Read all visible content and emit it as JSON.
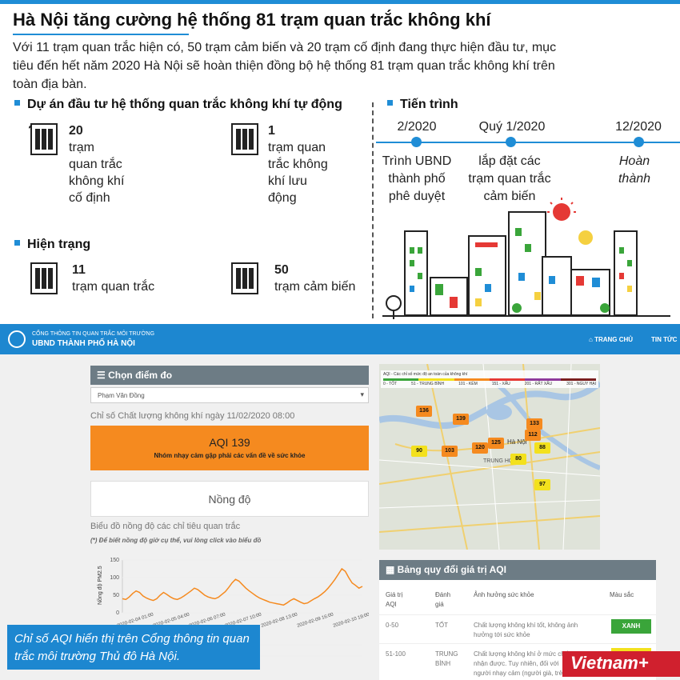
{
  "header": {
    "title": "Hà Nội tăng cường hệ thống 81 trạm quan trắc không khí",
    "intro": "Với 11 trạm quan trắc hiện có, 50 trạm cảm biến và 20 trạm cố định đang thực hiện đầu tư, mục tiêu đến hết năm 2020 Hà Nội sẽ hoàn thiện đồng bộ hệ thống 81 trạm quan trắc không khí trên toàn địa bàn."
  },
  "project": {
    "heading": "Dự án đầu tư hệ thống quan trắc không khí tự động",
    "items": [
      {
        "number": "20",
        "l1": "trạm",
        "l2": "quan trắc",
        "l3": "không khí",
        "l4": "cố định"
      },
      {
        "number": "1",
        "l1": "trạm quan",
        "l2": "trắc không",
        "l3": "khí lưu",
        "l4": "động"
      }
    ]
  },
  "current": {
    "heading": "Hiện trạng",
    "items": [
      {
        "number": "11",
        "label": "trạm quan trắc"
      },
      {
        "number": "50",
        "label": "trạm cảm biến"
      }
    ]
  },
  "timeline": {
    "heading": "Tiến trình",
    "steps": [
      {
        "date": "2/2020",
        "l1": "Trình UBND",
        "l2": "thành phố",
        "l3": "phê duyệt"
      },
      {
        "date": "Quý 1/2020",
        "l1": "lắp đặt các",
        "l2": "trạm quan trắc",
        "l3": "cảm biến"
      },
      {
        "date": "12/2020",
        "l1": "Hoàn",
        "l2": "thành",
        "l3": ""
      }
    ]
  },
  "portal": {
    "nav": {
      "line1": "CỔNG THÔNG TIN QUAN TRẮC MÔI TRƯỜNG",
      "line2": "UBND THÀNH PHỐ HÀ NỘI",
      "home": "TRANG CHỦ",
      "news": "TIN TỨC"
    },
    "select_heading": "Chọn điểm đo",
    "selected_station": "Phạm Văn Đồng",
    "index_label": "Chỉ số Chất lượng không khí ngày 11/02/2020 08:00",
    "aqi_value": "AQI 139",
    "aqi_message": "Nhóm nhạy cảm gặp phải các vấn đề về sức khỏe",
    "concentration": "Nồng độ",
    "chart_label": "Biểu đồ nồng độ các chỉ tiêu quan trắc",
    "chart_note": "(*) Để biết nồng độ giờ cụ thể, vui lòng click vào biểu đồ"
  },
  "map": {
    "legend_title": "AQI - Các chỉ số mức độ an toàn của không khí",
    "legend": [
      "0 - TỐT",
      "51 - TRUNG BÌNH",
      "101 - KÉM",
      "151 - XẤU",
      "201 - RẤT XẤU",
      "301 - NGUY HẠI"
    ],
    "legend_colors": [
      "#3aa53a",
      "#f3e11d",
      "#f58a1f",
      "#e53935",
      "#8e3a9b",
      "#7a1f1f"
    ],
    "places": [
      "Hà Nội",
      "TRUNG HOA"
    ],
    "stations": [
      {
        "value": "136",
        "color": "#f58a1f"
      },
      {
        "value": "139",
        "color": "#f58a1f"
      },
      {
        "value": "133",
        "color": "#f58a1f"
      },
      {
        "value": "112",
        "color": "#f58a1f"
      },
      {
        "value": "90",
        "color": "#f3e11d"
      },
      {
        "value": "103",
        "color": "#f58a1f"
      },
      {
        "value": "120",
        "color": "#f58a1f"
      },
      {
        "value": "125",
        "color": "#f58a1f"
      },
      {
        "value": "88",
        "color": "#f3e11d"
      },
      {
        "value": "80",
        "color": "#f3e11d"
      },
      {
        "value": "97",
        "color": "#f3e11d"
      }
    ]
  },
  "aqi_table": {
    "heading": "Bảng quy đổi giá trị AQI",
    "cols": [
      "Giá trị",
      "AQI",
      "Đánh",
      "giá",
      "Ảnh hưởng sức khỏe",
      "Màu sắc"
    ],
    "row1": {
      "range": "0-50",
      "rating": "TỐT",
      "effect1": "Chất lượng không khí tốt, không ảnh",
      "effect2": "hưởng tới sức khỏe",
      "color_label": "XANH"
    },
    "row2": {
      "range": "51-100",
      "rating1": "TRUNG",
      "rating2": "BÌNH",
      "effect1": "Chất lượng không khí ở mức chấp",
      "effect2": "nhận được. Tuy nhiên, đối với",
      "effect3": "người nhạy cảm (người già, trẻ em,"
    }
  },
  "chart_data": {
    "type": "line",
    "title": "",
    "ylabel": "Nồng độ PM2.5",
    "ylim": [
      0,
      150
    ],
    "yticks": [
      "0",
      "50",
      "100",
      "150"
    ],
    "xticks": [
      "2020-02-04 01:00",
      "2020-02-05 04:00",
      "2020-02-06 07:00",
      "2020-02-07 10:00",
      "2020-02-08 13:00",
      "2020-02-09 16:00",
      "2020-02-10 19:00"
    ],
    "values": [
      40,
      38,
      45,
      55,
      62,
      58,
      48,
      42,
      38,
      35,
      40,
      50,
      58,
      52,
      45,
      40,
      38,
      42,
      48,
      55,
      62,
      70,
      66,
      58,
      50,
      45,
      42,
      40,
      44,
      52,
      60,
      72,
      85,
      95,
      90,
      80,
      70,
      62,
      55,
      48,
      42,
      38,
      34,
      30,
      28,
      26,
      24,
      22,
      28,
      35,
      40,
      35,
      30,
      26,
      28,
      34,
      40,
      45,
      52,
      60,
      70,
      82,
      95,
      110,
      125,
      118,
      100,
      85,
      78,
      70,
      75
    ]
  },
  "caption": "Chỉ số AQI hiển thị trên Cổng thông tin quan trắc môi trường Thủ đô Hà Nội.",
  "brand": "Vietnam+"
}
